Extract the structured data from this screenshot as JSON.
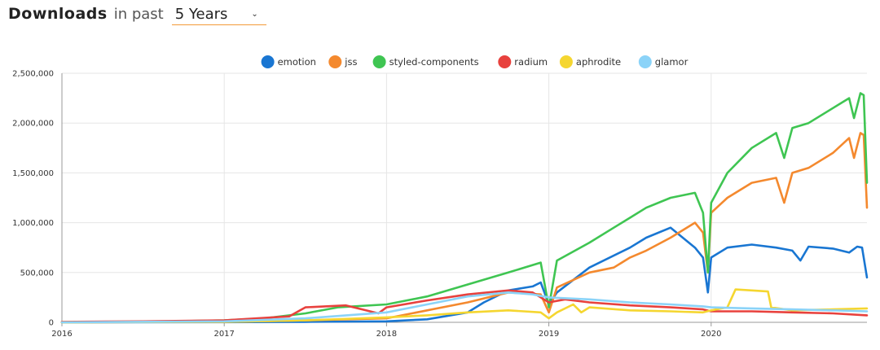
{
  "header": {
    "title": "Downloads",
    "in_past": "in past",
    "period": "5 Years"
  },
  "chart_data": {
    "type": "line",
    "x_ticks": [
      "2016",
      "2017",
      "2018",
      "2019",
      "2020"
    ],
    "x_range": [
      2016.0,
      2020.96
    ],
    "y_ticks": [
      "0",
      "500,000",
      "1,000,000",
      "1,500,000",
      "2,000,000",
      "2,500,000"
    ],
    "ylim": [
      0,
      2500000
    ],
    "grid": true,
    "legend_position": "top-center",
    "series": [
      {
        "name": "emotion",
        "color": "#1976d2",
        "points": [
          [
            2016.0,
            0
          ],
          [
            2017.0,
            2000
          ],
          [
            2017.5,
            5000
          ],
          [
            2018.0,
            10000
          ],
          [
            2018.25,
            30000
          ],
          [
            2018.5,
            100000
          ],
          [
            2018.6,
            200000
          ],
          [
            2018.75,
            320000
          ],
          [
            2018.9,
            360000
          ],
          [
            2018.95,
            400000
          ],
          [
            2019.0,
            180000
          ],
          [
            2019.05,
            300000
          ],
          [
            2019.25,
            550000
          ],
          [
            2019.5,
            750000
          ],
          [
            2019.6,
            850000
          ],
          [
            2019.75,
            950000
          ],
          [
            2019.9,
            750000
          ],
          [
            2019.95,
            650000
          ],
          [
            2019.98,
            300000
          ],
          [
            2020.0,
            650000
          ],
          [
            2020.1,
            750000
          ],
          [
            2020.25,
            780000
          ],
          [
            2020.4,
            750000
          ],
          [
            2020.5,
            720000
          ],
          [
            2020.55,
            620000
          ],
          [
            2020.6,
            760000
          ],
          [
            2020.75,
            740000
          ],
          [
            2020.85,
            700000
          ],
          [
            2020.9,
            760000
          ],
          [
            2020.93,
            750000
          ],
          [
            2020.96,
            450000
          ]
        ]
      },
      {
        "name": "jss",
        "color": "#f4892e",
        "points": [
          [
            2016.0,
            0
          ],
          [
            2017.0,
            5000
          ],
          [
            2017.5,
            20000
          ],
          [
            2018.0,
            40000
          ],
          [
            2018.25,
            120000
          ],
          [
            2018.5,
            200000
          ],
          [
            2018.75,
            300000
          ],
          [
            2018.95,
            280000
          ],
          [
            2019.0,
            100000
          ],
          [
            2019.05,
            350000
          ],
          [
            2019.25,
            500000
          ],
          [
            2019.4,
            550000
          ],
          [
            2019.5,
            650000
          ],
          [
            2019.6,
            720000
          ],
          [
            2019.75,
            850000
          ],
          [
            2019.9,
            1000000
          ],
          [
            2019.95,
            900000
          ],
          [
            2019.98,
            500000
          ],
          [
            2020.0,
            1100000
          ],
          [
            2020.1,
            1250000
          ],
          [
            2020.25,
            1400000
          ],
          [
            2020.4,
            1450000
          ],
          [
            2020.45,
            1200000
          ],
          [
            2020.5,
            1500000
          ],
          [
            2020.6,
            1550000
          ],
          [
            2020.75,
            1700000
          ],
          [
            2020.85,
            1850000
          ],
          [
            2020.88,
            1650000
          ],
          [
            2020.92,
            1900000
          ],
          [
            2020.94,
            1880000
          ],
          [
            2020.96,
            1150000
          ]
        ]
      },
      {
        "name": "styled-components",
        "color": "#3fc552",
        "points": [
          [
            2016.0,
            0
          ],
          [
            2016.5,
            5000
          ],
          [
            2017.0,
            20000
          ],
          [
            2017.25,
            40000
          ],
          [
            2017.5,
            90000
          ],
          [
            2017.7,
            150000
          ],
          [
            2018.0,
            180000
          ],
          [
            2018.25,
            260000
          ],
          [
            2018.5,
            380000
          ],
          [
            2018.75,
            500000
          ],
          [
            2018.95,
            600000
          ],
          [
            2019.0,
            150000
          ],
          [
            2019.05,
            620000
          ],
          [
            2019.25,
            800000
          ],
          [
            2019.4,
            950000
          ],
          [
            2019.5,
            1050000
          ],
          [
            2019.6,
            1150000
          ],
          [
            2019.75,
            1250000
          ],
          [
            2019.9,
            1300000
          ],
          [
            2019.95,
            1100000
          ],
          [
            2019.98,
            500000
          ],
          [
            2020.0,
            1200000
          ],
          [
            2020.1,
            1500000
          ],
          [
            2020.25,
            1750000
          ],
          [
            2020.4,
            1900000
          ],
          [
            2020.45,
            1650000
          ],
          [
            2020.5,
            1950000
          ],
          [
            2020.6,
            2000000
          ],
          [
            2020.75,
            2150000
          ],
          [
            2020.85,
            2250000
          ],
          [
            2020.88,
            2050000
          ],
          [
            2020.92,
            2300000
          ],
          [
            2020.94,
            2280000
          ],
          [
            2020.96,
            1400000
          ]
        ]
      },
      {
        "name": "radium",
        "color": "#e8413d",
        "points": [
          [
            2016.0,
            5000
          ],
          [
            2016.5,
            10000
          ],
          [
            2017.0,
            20000
          ],
          [
            2017.4,
            60000
          ],
          [
            2017.5,
            150000
          ],
          [
            2017.75,
            170000
          ],
          [
            2017.95,
            90000
          ],
          [
            2018.0,
            150000
          ],
          [
            2018.25,
            220000
          ],
          [
            2018.5,
            280000
          ],
          [
            2018.75,
            320000
          ],
          [
            2018.9,
            300000
          ],
          [
            2019.0,
            200000
          ],
          [
            2019.1,
            230000
          ],
          [
            2019.25,
            200000
          ],
          [
            2019.5,
            170000
          ],
          [
            2019.75,
            150000
          ],
          [
            2019.95,
            130000
          ],
          [
            2020.0,
            110000
          ],
          [
            2020.25,
            110000
          ],
          [
            2020.5,
            100000
          ],
          [
            2020.75,
            90000
          ],
          [
            2020.96,
            70000
          ]
        ]
      },
      {
        "name": "aphrodite",
        "color": "#f5d630",
        "points": [
          [
            2016.0,
            0
          ],
          [
            2017.0,
            5000
          ],
          [
            2017.5,
            20000
          ],
          [
            2018.0,
            50000
          ],
          [
            2018.25,
            70000
          ],
          [
            2018.5,
            100000
          ],
          [
            2018.75,
            120000
          ],
          [
            2018.95,
            100000
          ],
          [
            2019.0,
            40000
          ],
          [
            2019.05,
            100000
          ],
          [
            2019.15,
            180000
          ],
          [
            2019.2,
            100000
          ],
          [
            2019.25,
            150000
          ],
          [
            2019.5,
            120000
          ],
          [
            2019.75,
            110000
          ],
          [
            2019.95,
            100000
          ],
          [
            2020.0,
            120000
          ],
          [
            2020.1,
            150000
          ],
          [
            2020.15,
            330000
          ],
          [
            2020.25,
            320000
          ],
          [
            2020.35,
            310000
          ],
          [
            2020.37,
            150000
          ],
          [
            2020.5,
            120000
          ],
          [
            2020.75,
            130000
          ],
          [
            2020.96,
            140000
          ]
        ]
      },
      {
        "name": "glamor",
        "color": "#8bd3f8",
        "points": [
          [
            2016.0,
            0
          ],
          [
            2017.0,
            10000
          ],
          [
            2017.5,
            40000
          ],
          [
            2018.0,
            100000
          ],
          [
            2018.25,
            180000
          ],
          [
            2018.5,
            260000
          ],
          [
            2018.75,
            300000
          ],
          [
            2018.9,
            280000
          ],
          [
            2019.0,
            250000
          ],
          [
            2019.25,
            230000
          ],
          [
            2019.5,
            200000
          ],
          [
            2019.75,
            180000
          ],
          [
            2019.95,
            160000
          ],
          [
            2020.0,
            150000
          ],
          [
            2020.25,
            140000
          ],
          [
            2020.5,
            130000
          ],
          [
            2020.75,
            120000
          ],
          [
            2020.96,
            110000
          ]
        ]
      }
    ]
  }
}
